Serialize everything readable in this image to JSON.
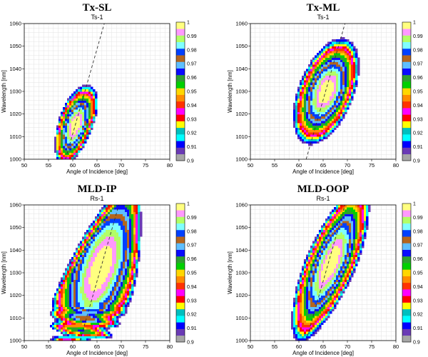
{
  "figure": {
    "panels": [
      {
        "title": "Tx-SL",
        "subtitle": "Ts-1"
      },
      {
        "title": "Tx-ML",
        "subtitle": "Ts-1"
      },
      {
        "title": "MLD-IP",
        "subtitle": "Rs-1"
      },
      {
        "title": "MLD-OOP",
        "subtitle": "Rs-1"
      }
    ]
  },
  "chart_data": [
    {
      "type": "heatmap",
      "title": "Tx-SL",
      "subtitle": "Ts-1",
      "xlabel": "Angle of Incidence [deg]",
      "ylabel": "Wavelength [nm]",
      "xlim": [
        50,
        80
      ],
      "ylim": [
        1000,
        1060
      ],
      "xticks": [
        50,
        55,
        60,
        65,
        70,
        75,
        80
      ],
      "yticks": [
        1000,
        1010,
        1020,
        1030,
        1040,
        1050,
        1060
      ],
      "grid": true,
      "colorbar_ticks": [
        "1",
        "0.99",
        "0.98",
        "0.97",
        "0.96",
        "0.95",
        "0.94",
        "0.93",
        "0.92",
        "0.91",
        "0.9"
      ],
      "levels": [
        0.9,
        0.91,
        0.92,
        0.93,
        0.94,
        0.95,
        0.96,
        0.97,
        0.98,
        0.99,
        1.0
      ],
      "level_colors": [
        "#a6a6a6",
        "#6a3ab5",
        "#0000ff",
        "#00ffff",
        "#00bfbf",
        "#ffff00",
        "#ff0000",
        "#ff00ff",
        "#ff3300",
        "#ff8c00",
        "#ffd700",
        "#00d000",
        "#2fa02f",
        "#0a0aff",
        "#5fbfff",
        "#b5651d",
        "#0040ff",
        "#80ffff",
        "#b2ff66",
        "#ff99ff",
        "#ffff80"
      ],
      "dashed_line": {
        "x": [
          58.5,
          66.5
        ],
        "y": [
          1000,
          1060
        ]
      }
    },
    {
      "type": "heatmap",
      "title": "Tx-ML",
      "subtitle": "Ts-1",
      "xlabel": "Angle of Incidence [deg]",
      "ylabel": "Wavelength [nm]",
      "xlim": [
        50,
        80
      ],
      "ylim": [
        1000,
        1060
      ],
      "xticks": [
        50,
        55,
        60,
        65,
        70,
        75,
        80
      ],
      "yticks": [
        1000,
        1010,
        1020,
        1030,
        1040,
        1050,
        1060
      ],
      "grid": true,
      "colorbar_ticks": [
        "1",
        "0.99",
        "0.98",
        "0.97",
        "0.96",
        "0.95",
        "0.94",
        "0.93",
        "0.92",
        "0.91",
        "0.9"
      ],
      "dashed_line": {
        "x": [
          61.5,
          69.5
        ],
        "y": [
          1000,
          1060
        ]
      }
    },
    {
      "type": "heatmap",
      "title": "MLD-IP",
      "subtitle": "Rs-1",
      "xlabel": "Angle of Incidence [deg]",
      "ylabel": "Wavelength [nm]",
      "xlim": [
        50,
        80
      ],
      "ylim": [
        1000,
        1060
      ],
      "xticks": [
        50,
        55,
        60,
        65,
        70,
        75,
        80
      ],
      "yticks": [
        1000,
        1010,
        1020,
        1030,
        1040,
        1050,
        1060
      ],
      "grid": true,
      "colorbar_ticks": [
        "1",
        "0.99",
        "0.98",
        "0.97",
        "0.96",
        "0.95",
        "0.94",
        "0.93",
        "0.92",
        "0.91",
        "0.9"
      ],
      "dashed_line": {
        "x": [
          61.5,
          69.5
        ],
        "y": [
          1000,
          1060
        ]
      }
    },
    {
      "type": "heatmap",
      "title": "MLD-OOP",
      "subtitle": "Rs-1",
      "xlabel": "Angle of Incidence [deg]",
      "ylabel": "Wavelength [nm]",
      "xlim": [
        50,
        80
      ],
      "ylim": [
        1000,
        1060
      ],
      "xticks": [
        50,
        55,
        60,
        65,
        70,
        75,
        80
      ],
      "yticks": [
        1000,
        1010,
        1020,
        1030,
        1040,
        1050,
        1060
      ],
      "grid": true,
      "colorbar_ticks": [
        "1",
        "0.99",
        "0.98",
        "0.97",
        "0.96",
        "0.95",
        "0.94",
        "0.93",
        "0.92",
        "0.91",
        "0.9"
      ],
      "dashed_line": {
        "x": [
          61.5,
          69.5
        ],
        "y": [
          1000,
          1060
        ]
      }
    }
  ]
}
